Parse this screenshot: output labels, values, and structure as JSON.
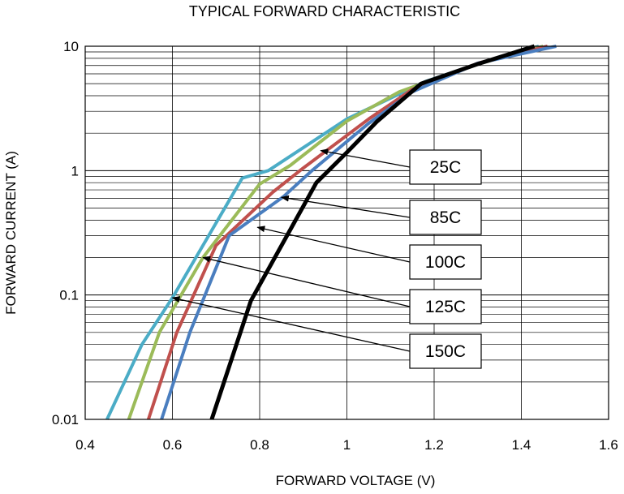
{
  "chart_data": {
    "type": "line",
    "title": "TYPICAL FORWARD CHARACTERISTIC",
    "xlabel": "FORWARD VOLTAGE (V)",
    "ylabel": "FORWARD CURRENT (A)",
    "xlim": [
      0.4,
      1.6
    ],
    "ylim": [
      0.01,
      10
    ],
    "yscale": "log",
    "grid": true,
    "x_ticks": [
      "0.4",
      "0.6",
      "0.8",
      "1",
      "1.2",
      "1.4",
      "1.6"
    ],
    "x_tick_values": [
      0.4,
      0.6,
      0.8,
      1.0,
      1.2,
      1.4,
      1.6
    ],
    "y_ticks": [
      "0.01",
      "0.1",
      "1",
      "10"
    ],
    "y_tick_values": [
      0.01,
      0.1,
      1,
      10
    ],
    "series": [
      {
        "name": "25C",
        "color": "#000000",
        "points": [
          [
            0.69,
            0.01
          ],
          [
            0.78,
            0.09
          ],
          [
            0.93,
            0.8
          ],
          [
            1.0,
            1.4
          ],
          [
            1.07,
            2.5
          ],
          [
            1.17,
            5.0
          ],
          [
            1.3,
            7.2
          ],
          [
            1.43,
            10
          ]
        ]
      },
      {
        "name": "85C",
        "color": "#4a7ebf",
        "points": [
          [
            0.575,
            0.01
          ],
          [
            0.64,
            0.05
          ],
          [
            0.73,
            0.3
          ],
          [
            0.855,
            0.62
          ],
          [
            0.92,
            1.0
          ],
          [
            1.05,
            2.4
          ],
          [
            1.15,
            4.3
          ],
          [
            1.3,
            7.3
          ],
          [
            1.48,
            10
          ]
        ]
      },
      {
        "name": "100C",
        "color": "#c0504d",
        "points": [
          [
            0.545,
            0.01
          ],
          [
            0.61,
            0.05
          ],
          [
            0.7,
            0.25
          ],
          [
            0.83,
            0.67
          ],
          [
            0.9,
            1.05
          ],
          [
            1.05,
            2.6
          ],
          [
            1.15,
            4.5
          ],
          [
            1.3,
            7.3
          ],
          [
            1.46,
            10
          ]
        ]
      },
      {
        "name": "125C",
        "color": "#9bbb59",
        "points": [
          [
            0.5,
            0.01
          ],
          [
            0.57,
            0.05
          ],
          [
            0.67,
            0.2
          ],
          [
            0.8,
            0.78
          ],
          [
            0.87,
            1.1
          ],
          [
            1.0,
            2.5
          ],
          [
            1.12,
            4.3
          ],
          [
            1.3,
            7.2
          ],
          [
            1.45,
            10
          ]
        ]
      },
      {
        "name": "150C",
        "color": "#4bacc6",
        "points": [
          [
            0.45,
            0.01
          ],
          [
            0.53,
            0.04
          ],
          [
            0.6,
            0.095
          ],
          [
            0.76,
            0.87
          ],
          [
            0.82,
            1.0
          ],
          [
            1.0,
            2.6
          ],
          [
            1.18,
            5.2
          ],
          [
            1.3,
            7.2
          ],
          [
            1.44,
            10
          ]
        ]
      }
    ],
    "annotations": [
      {
        "label": "25C",
        "arrow_to": [
          0.94,
          1.45
        ]
      },
      {
        "label": "85C",
        "arrow_to": [
          0.85,
          0.61
        ]
      },
      {
        "label": "100C",
        "arrow_to": [
          0.795,
          0.35
        ]
      },
      {
        "label": "125C",
        "arrow_to": [
          0.67,
          0.2
        ]
      },
      {
        "label": "150C",
        "arrow_to": [
          0.6,
          0.095
        ]
      }
    ]
  }
}
